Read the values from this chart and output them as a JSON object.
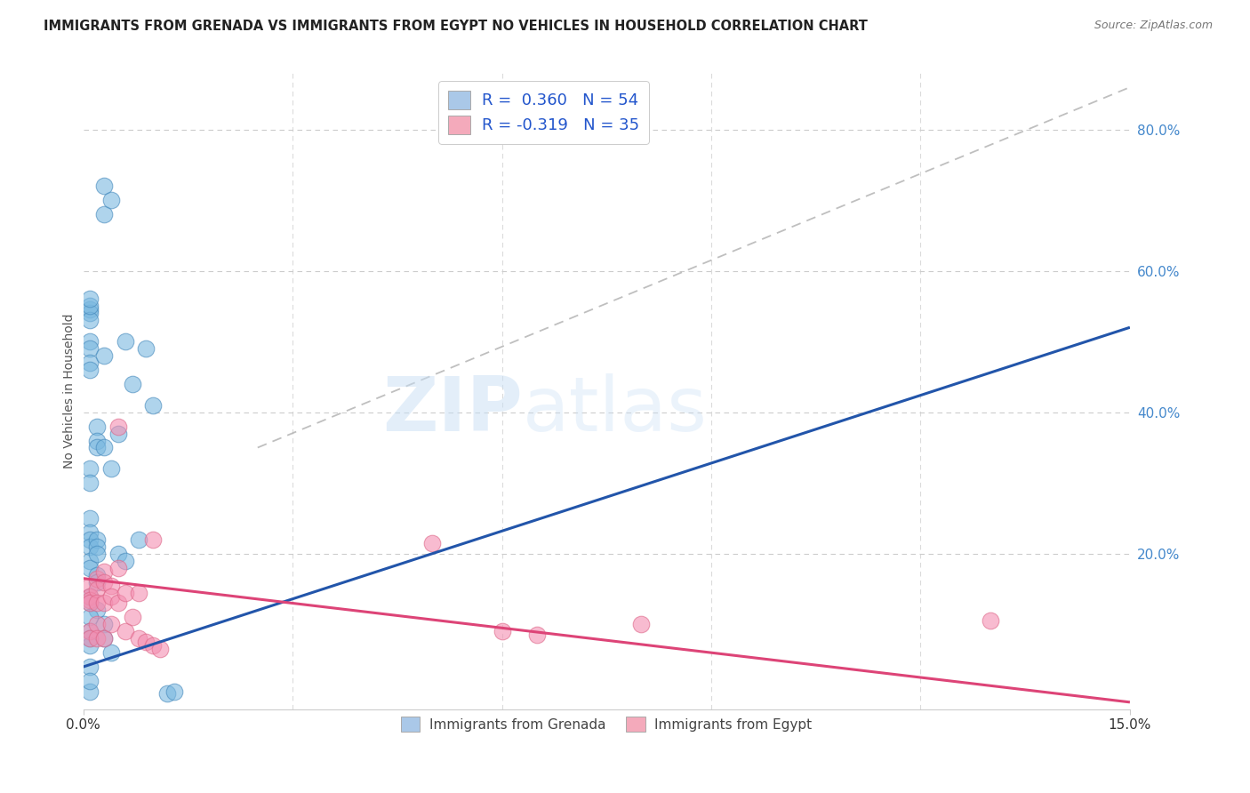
{
  "title": "IMMIGRANTS FROM GRENADA VS IMMIGRANTS FROM EGYPT NO VEHICLES IN HOUSEHOLD CORRELATION CHART",
  "source": "Source: ZipAtlas.com",
  "ylabel": "No Vehicles in Household",
  "right_yticks": [
    "80.0%",
    "60.0%",
    "40.0%",
    "20.0%"
  ],
  "right_ytick_vals": [
    0.8,
    0.6,
    0.4,
    0.2
  ],
  "xlim": [
    0.0,
    0.15
  ],
  "ylim": [
    -0.02,
    0.88
  ],
  "legend_label1": "R =  0.360   N = 54",
  "legend_label2": "R = -0.319   N = 35",
  "legend_color1": "#aac8e8",
  "legend_color2": "#f4aabb",
  "watermark_zip": "ZIP",
  "watermark_atlas": "atlas",
  "grenada_color": "#7ab8e0",
  "egypt_color": "#f48fb1",
  "grenada_edge": "#4488bb",
  "egypt_edge": "#dd6688",
  "scatter_alpha": 0.6,
  "background_color": "#ffffff",
  "grid_color": "#cccccc",
  "title_fontsize": 10.5,
  "axis_label_fontsize": 10,
  "tick_fontsize": 11,
  "grenada_line": [
    0.0,
    0.15,
    0.04,
    0.52
  ],
  "egypt_line": [
    0.0,
    0.15,
    0.165,
    -0.01
  ],
  "dash_line": [
    0.025,
    0.155,
    0.35,
    0.88
  ],
  "grenada_x": [
    0.001,
    0.001,
    0.001,
    0.001,
    0.001,
    0.001,
    0.001,
    0.001,
    0.001,
    0.001,
    0.001,
    0.001,
    0.001,
    0.001,
    0.001,
    0.001,
    0.001,
    0.001,
    0.001,
    0.001,
    0.002,
    0.002,
    0.002,
    0.002,
    0.002,
    0.002,
    0.002,
    0.002,
    0.002,
    0.003,
    0.003,
    0.003,
    0.003,
    0.003,
    0.003,
    0.004,
    0.004,
    0.004,
    0.005,
    0.005,
    0.006,
    0.006,
    0.007,
    0.008,
    0.009,
    0.01,
    0.012,
    0.013,
    0.001,
    0.001,
    0.001,
    0.001,
    0.001,
    0.001
  ],
  "grenada_y": [
    0.545,
    0.54,
    0.53,
    0.5,
    0.49,
    0.47,
    0.46,
    0.55,
    0.56,
    0.005,
    0.32,
    0.3,
    0.25,
    0.23,
    0.22,
    0.21,
    0.19,
    0.18,
    0.14,
    0.13,
    0.38,
    0.36,
    0.35,
    0.22,
    0.21,
    0.2,
    0.17,
    0.16,
    0.12,
    0.68,
    0.72,
    0.48,
    0.35,
    0.1,
    0.08,
    0.7,
    0.32,
    0.06,
    0.37,
    0.2,
    0.5,
    0.19,
    0.44,
    0.22,
    0.49,
    0.41,
    0.003,
    0.005,
    0.11,
    0.09,
    0.08,
    0.07,
    0.04,
    0.02
  ],
  "egypt_x": [
    0.001,
    0.001,
    0.001,
    0.001,
    0.001,
    0.001,
    0.002,
    0.002,
    0.002,
    0.002,
    0.002,
    0.003,
    0.003,
    0.003,
    0.003,
    0.004,
    0.004,
    0.004,
    0.005,
    0.005,
    0.005,
    0.006,
    0.006,
    0.007,
    0.008,
    0.008,
    0.009,
    0.01,
    0.01,
    0.011,
    0.05,
    0.06,
    0.065,
    0.08,
    0.13
  ],
  "egypt_y": [
    0.155,
    0.14,
    0.135,
    0.13,
    0.09,
    0.08,
    0.165,
    0.15,
    0.13,
    0.1,
    0.08,
    0.175,
    0.16,
    0.13,
    0.08,
    0.155,
    0.14,
    0.1,
    0.38,
    0.18,
    0.13,
    0.145,
    0.09,
    0.11,
    0.145,
    0.08,
    0.075,
    0.22,
    0.07,
    0.065,
    0.215,
    0.09,
    0.085,
    0.1,
    0.105
  ]
}
